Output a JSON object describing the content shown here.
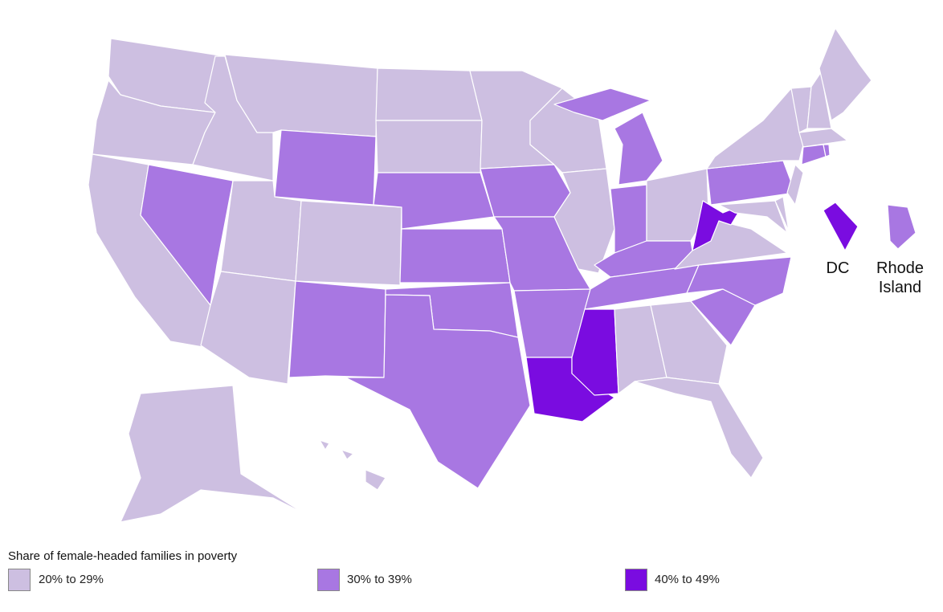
{
  "legend": {
    "title": "Share of female-headed families in poverty",
    "items": [
      {
        "label": "20% to 29%",
        "color": "#cdbfe1"
      },
      {
        "label": "30% to 39%",
        "color": "#a877e2"
      },
      {
        "label": "40% to 49%",
        "color": "#7a0ce0"
      }
    ]
  },
  "callouts": [
    "DC",
    "Rhode Island"
  ]
}
